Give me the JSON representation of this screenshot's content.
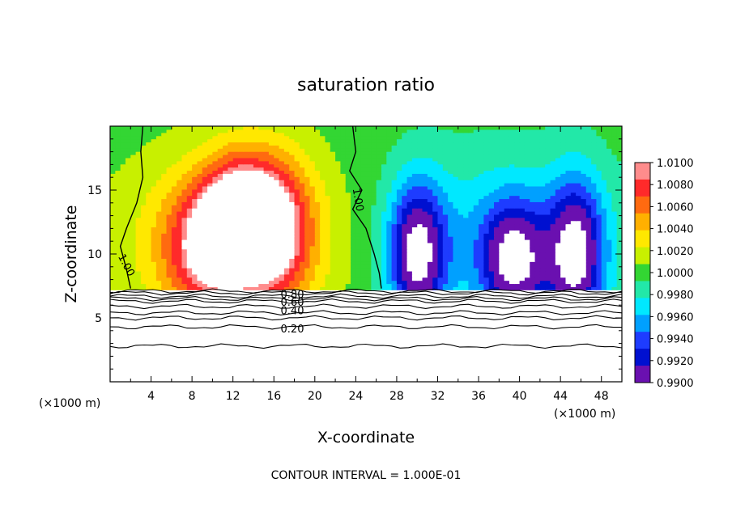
{
  "chart_data": {
    "type": "heatmap",
    "title": "saturation ratio",
    "xlabel": "X-coordinate",
    "ylabel": "Z-coordinate",
    "x_unit_left": "(×1000 m)",
    "x_unit_right": "(×1000 m)",
    "xlim": [
      0,
      50
    ],
    "ylim": [
      0,
      20
    ],
    "x_ticks": [
      4,
      8,
      12,
      16,
      20,
      24,
      28,
      32,
      36,
      40,
      44,
      48
    ],
    "x_tick_labels": [
      "4",
      "8",
      "12",
      "16",
      "20",
      "24",
      "28",
      "32",
      "36",
      "40",
      "44",
      "48"
    ],
    "y_ticks": [
      5,
      10,
      15
    ],
    "y_tick_labels": [
      "5",
      "10",
      "15"
    ],
    "colorbar": {
      "min": 0.99,
      "max": 1.01,
      "labels": [
        "1.0100",
        "1.0080",
        "1.0060",
        "1.0040",
        "1.0020",
        "1.0000",
        "0.9980",
        "0.9960",
        "0.9940",
        "0.9920",
        "0.9900"
      ],
      "colors": [
        "#ff8c8c",
        "#ff2a2a",
        "#ff6a10",
        "#ffb000",
        "#ffe800",
        "#c8f000",
        "#33d633",
        "#22e8a8",
        "#00e8ff",
        "#00a0ff",
        "#1e3cff",
        "#0010d0",
        "#6a10b0"
      ]
    },
    "surface_height_km": 7.2,
    "saturation_field": {
      "background": 1.0,
      "supersaturated_region": {
        "x_range": [
          4,
          20
        ],
        "peak_value": 1.01,
        "description_top_km": 16
      },
      "subsaturated_plumes": [
        {
          "x_center": 30,
          "peak_value": 0.99
        },
        {
          "x_center": 40,
          "peak_value": 0.99
        },
        {
          "x_center": 45,
          "peak_value": 0.99
        }
      ]
    },
    "contours": [
      {
        "level": "1.00",
        "label": "1.00"
      },
      {
        "level": "0.80",
        "label": "0.80"
      },
      {
        "level": "0.60",
        "label": "0.60"
      },
      {
        "level": "0.40",
        "label": "0.40"
      },
      {
        "level": "0.20",
        "label": "0.20"
      }
    ],
    "contour_heights_km": [
      {
        "level": 0.8,
        "z": 6.7
      },
      {
        "level": 0.6,
        "z": 6.3
      },
      {
        "level": 0.4,
        "z": 5.4
      },
      {
        "level": 0.2,
        "z": 4.3
      },
      {
        "level": 0.1,
        "z": 2.8
      }
    ],
    "contour_interval": "CONTOUR INTERVAL = 1.000E-01"
  }
}
